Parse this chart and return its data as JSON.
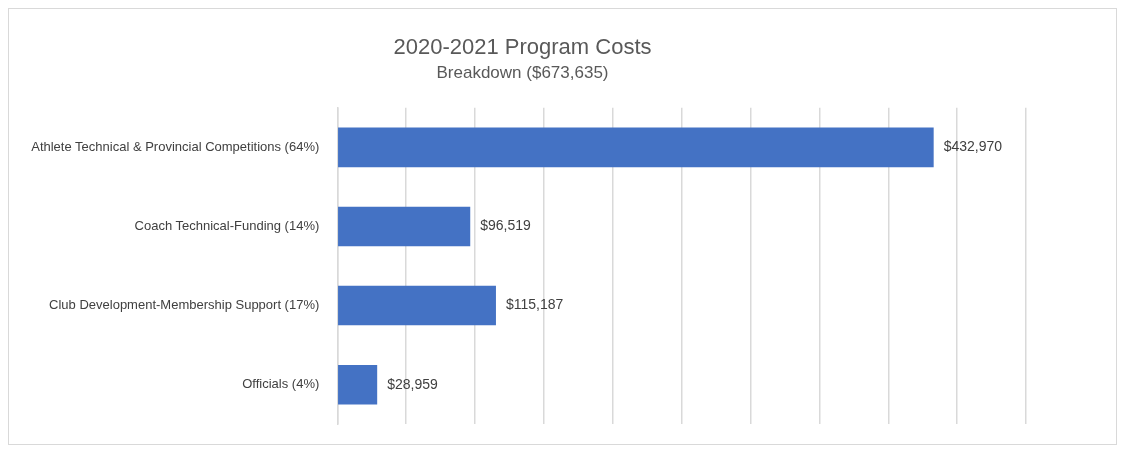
{
  "chart_data": {
    "type": "bar",
    "orientation": "horizontal",
    "title": "2020-2021 Program Costs",
    "subtitle": "Breakdown ($673,635)",
    "categories": [
      "Athlete Technical & Provincial Competitions (64%)",
      "Coach Technical-Funding (14%)",
      "Club Development-Membership Support (17%)",
      "Officials (4%)"
    ],
    "values": [
      432970,
      96519,
      115187,
      28959
    ],
    "value_labels": [
      "$432,970",
      "$96,519",
      "$115,187",
      "$28,959"
    ],
    "color": "#4472c4",
    "xlim": [
      0,
      500000
    ],
    "xticks": [
      {
        "value": 0,
        "label": null
      },
      {
        "value": 50000,
        "label": null
      },
      {
        "value": 100000,
        "label": null
      },
      {
        "value": 150000,
        "label": null
      },
      {
        "value": 200000,
        "label": null
      },
      {
        "value": 250000,
        "label": null
      },
      {
        "value": 300000,
        "label": null
      },
      {
        "value": 350000,
        "label": null
      },
      {
        "value": 400000,
        "label": null
      },
      {
        "value": 450000,
        "label": null
      },
      {
        "value": 500000,
        "label": null
      }
    ],
    "grid": "x",
    "legend": false,
    "tick_labels": "y"
  }
}
